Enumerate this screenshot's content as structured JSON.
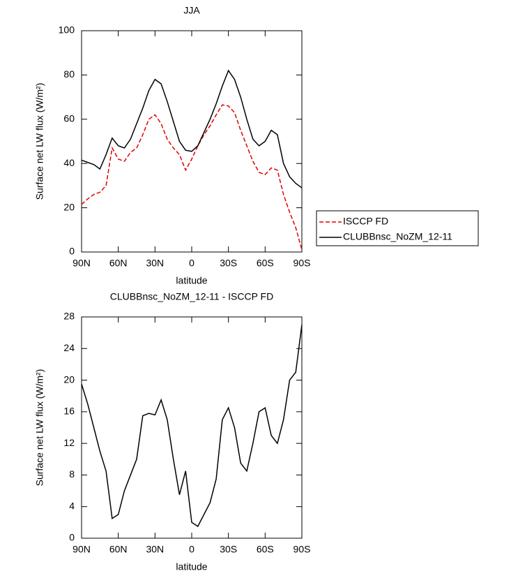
{
  "chart_data": [
    {
      "type": "line",
      "title": "JJA",
      "xlabel": "latitude",
      "ylabel": "Surface net LW flux (W/m²)",
      "x": [
        90,
        85,
        80,
        75,
        70,
        65,
        60,
        55,
        50,
        45,
        40,
        35,
        30,
        25,
        20,
        15,
        10,
        5,
        0,
        -5,
        -10,
        -15,
        -20,
        -25,
        -30,
        -35,
        -40,
        -45,
        -50,
        -55,
        -60,
        -65,
        -70,
        -75,
        -80,
        -85,
        -90
      ],
      "series": [
        {
          "name": "ISCCP FD",
          "color": "#e00000",
          "style": "dashed",
          "values": [
            21.5,
            24,
            26,
            27,
            30,
            47,
            42,
            41,
            45,
            47,
            53,
            60,
            62,
            58,
            51,
            47,
            44,
            37,
            42,
            48,
            53,
            57,
            62,
            66.5,
            66,
            63,
            55,
            48,
            41,
            36,
            35,
            38,
            37,
            26,
            18,
            11,
            1
          ]
        },
        {
          "name": "CLUBBnsc_NoZM_12-11",
          "color": "#000000",
          "style": "solid",
          "values": [
            41.5,
            40.5,
            39.5,
            37.5,
            44,
            51.5,
            48,
            47,
            51,
            58,
            65,
            73,
            78,
            76,
            68,
            59,
            50,
            46,
            45.5,
            48,
            54,
            60,
            67,
            75,
            82,
            78,
            70,
            60,
            51,
            48,
            50,
            55,
            53,
            40,
            34,
            31,
            29
          ]
        }
      ],
      "xlim": [
        90,
        -90
      ],
      "xticks": [
        {
          "value": 90,
          "label": "90N"
        },
        {
          "value": 60,
          "label": "60N"
        },
        {
          "value": 30,
          "label": "30N"
        },
        0,
        {
          "value": -30,
          "label": "30S"
        },
        {
          "value": -60,
          "label": "60S"
        },
        {
          "value": -90,
          "label": "90S"
        }
      ],
      "ylim": [
        0,
        100
      ],
      "yticks": [
        0,
        20,
        40,
        60,
        80,
        100
      ],
      "legend": "right"
    },
    {
      "type": "line",
      "title": "CLUBBnsc_NoZM_12-11 - ISCCP FD",
      "xlabel": "latitude",
      "ylabel": "Surface net LW flux (W/m²)",
      "x": [
        90,
        85,
        80,
        75,
        70,
        65,
        60,
        55,
        50,
        45,
        40,
        35,
        30,
        25,
        20,
        15,
        10,
        5,
        0,
        -5,
        -10,
        -15,
        -20,
        -25,
        -30,
        -35,
        -40,
        -45,
        -50,
        -55,
        -60,
        -65,
        -70,
        -75,
        -80,
        -85,
        -90
      ],
      "series": [
        {
          "color": "#000000",
          "style": "solid",
          "values": [
            19.5,
            17,
            14,
            11,
            8.5,
            2.5,
            3,
            6,
            8,
            10,
            15.5,
            15.8,
            15.6,
            17.5,
            15,
            10,
            5.5,
            8.5,
            2,
            1.5,
            3,
            4.5,
            7.5,
            15,
            16.5,
            14,
            9.5,
            8.5,
            12,
            16,
            16.5,
            13,
            12,
            15,
            20,
            21,
            27
          ]
        }
      ],
      "xlim": [
        90,
        -90
      ],
      "xticks": [
        {
          "value": 90,
          "label": "90N"
        },
        {
          "value": 60,
          "label": "60N"
        },
        {
          "value": 30,
          "label": "30N"
        },
        0,
        {
          "value": -30,
          "label": "30S"
        },
        {
          "value": -60,
          "label": "60S"
        },
        {
          "value": -90,
          "label": "90S"
        }
      ],
      "ylim": [
        0,
        28
      ],
      "yticks": [
        0,
        4,
        8,
        12,
        16,
        20,
        24,
        28
      ]
    }
  ]
}
